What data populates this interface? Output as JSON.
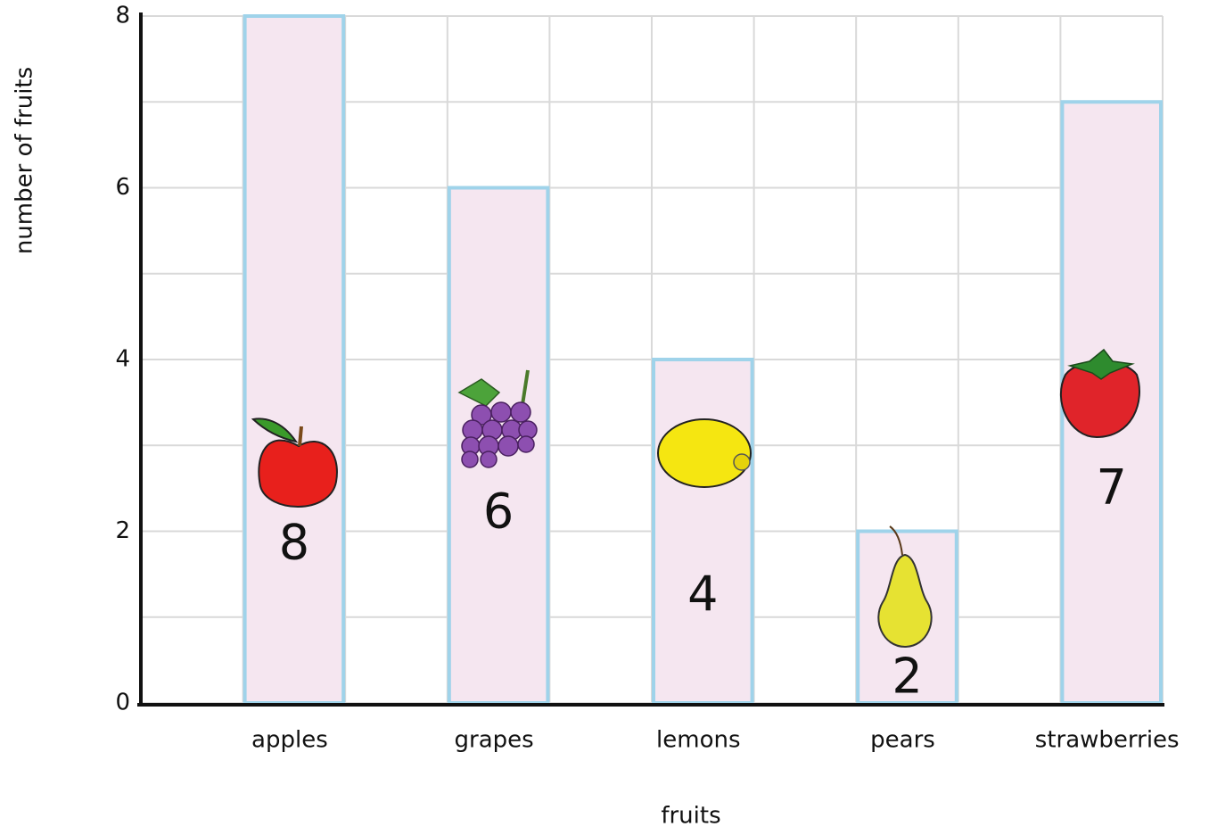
{
  "chart_data": {
    "type": "bar",
    "x_label": "fruits",
    "y_label": "number of fruits",
    "categories": [
      "apples",
      "grapes",
      "lemons",
      "pears",
      "strawberries"
    ],
    "values": [
      8,
      6,
      4,
      2,
      7
    ],
    "color": "#f5e6f0",
    "edge_color": "#9fd3ea",
    "ylim": [
      0,
      8
    ],
    "yticks": [
      0,
      2,
      4,
      6,
      8
    ],
    "grid": true
  }
}
